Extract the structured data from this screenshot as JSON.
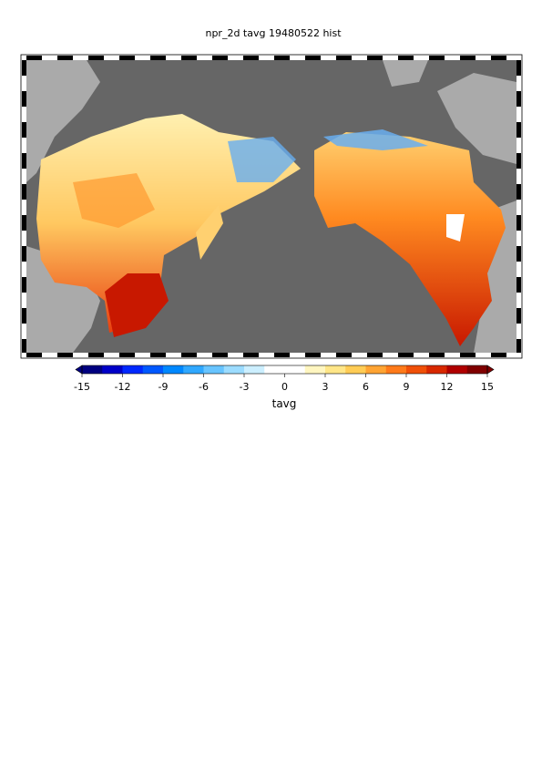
{
  "title": "npr_2d tavg 19480522 hist",
  "colorbar": {
    "label": "tavg",
    "clim": [
      -15,
      15
    ],
    "ticks": [
      -15,
      -12,
      -9,
      -6,
      -3,
      0,
      3,
      6,
      9,
      12,
      15
    ],
    "colors": [
      "#000080",
      "#0000c8",
      "#0028ff",
      "#0058ff",
      "#0088ff",
      "#30a8ff",
      "#68c4ff",
      "#9cdcff",
      "#ccefff",
      "#ffffff",
      "#ffffff",
      "#fff6c0",
      "#ffe688",
      "#ffcc55",
      "#ffa433",
      "#ff7a1a",
      "#f05008",
      "#d82800",
      "#b00000",
      "#800000"
    ]
  }
}
